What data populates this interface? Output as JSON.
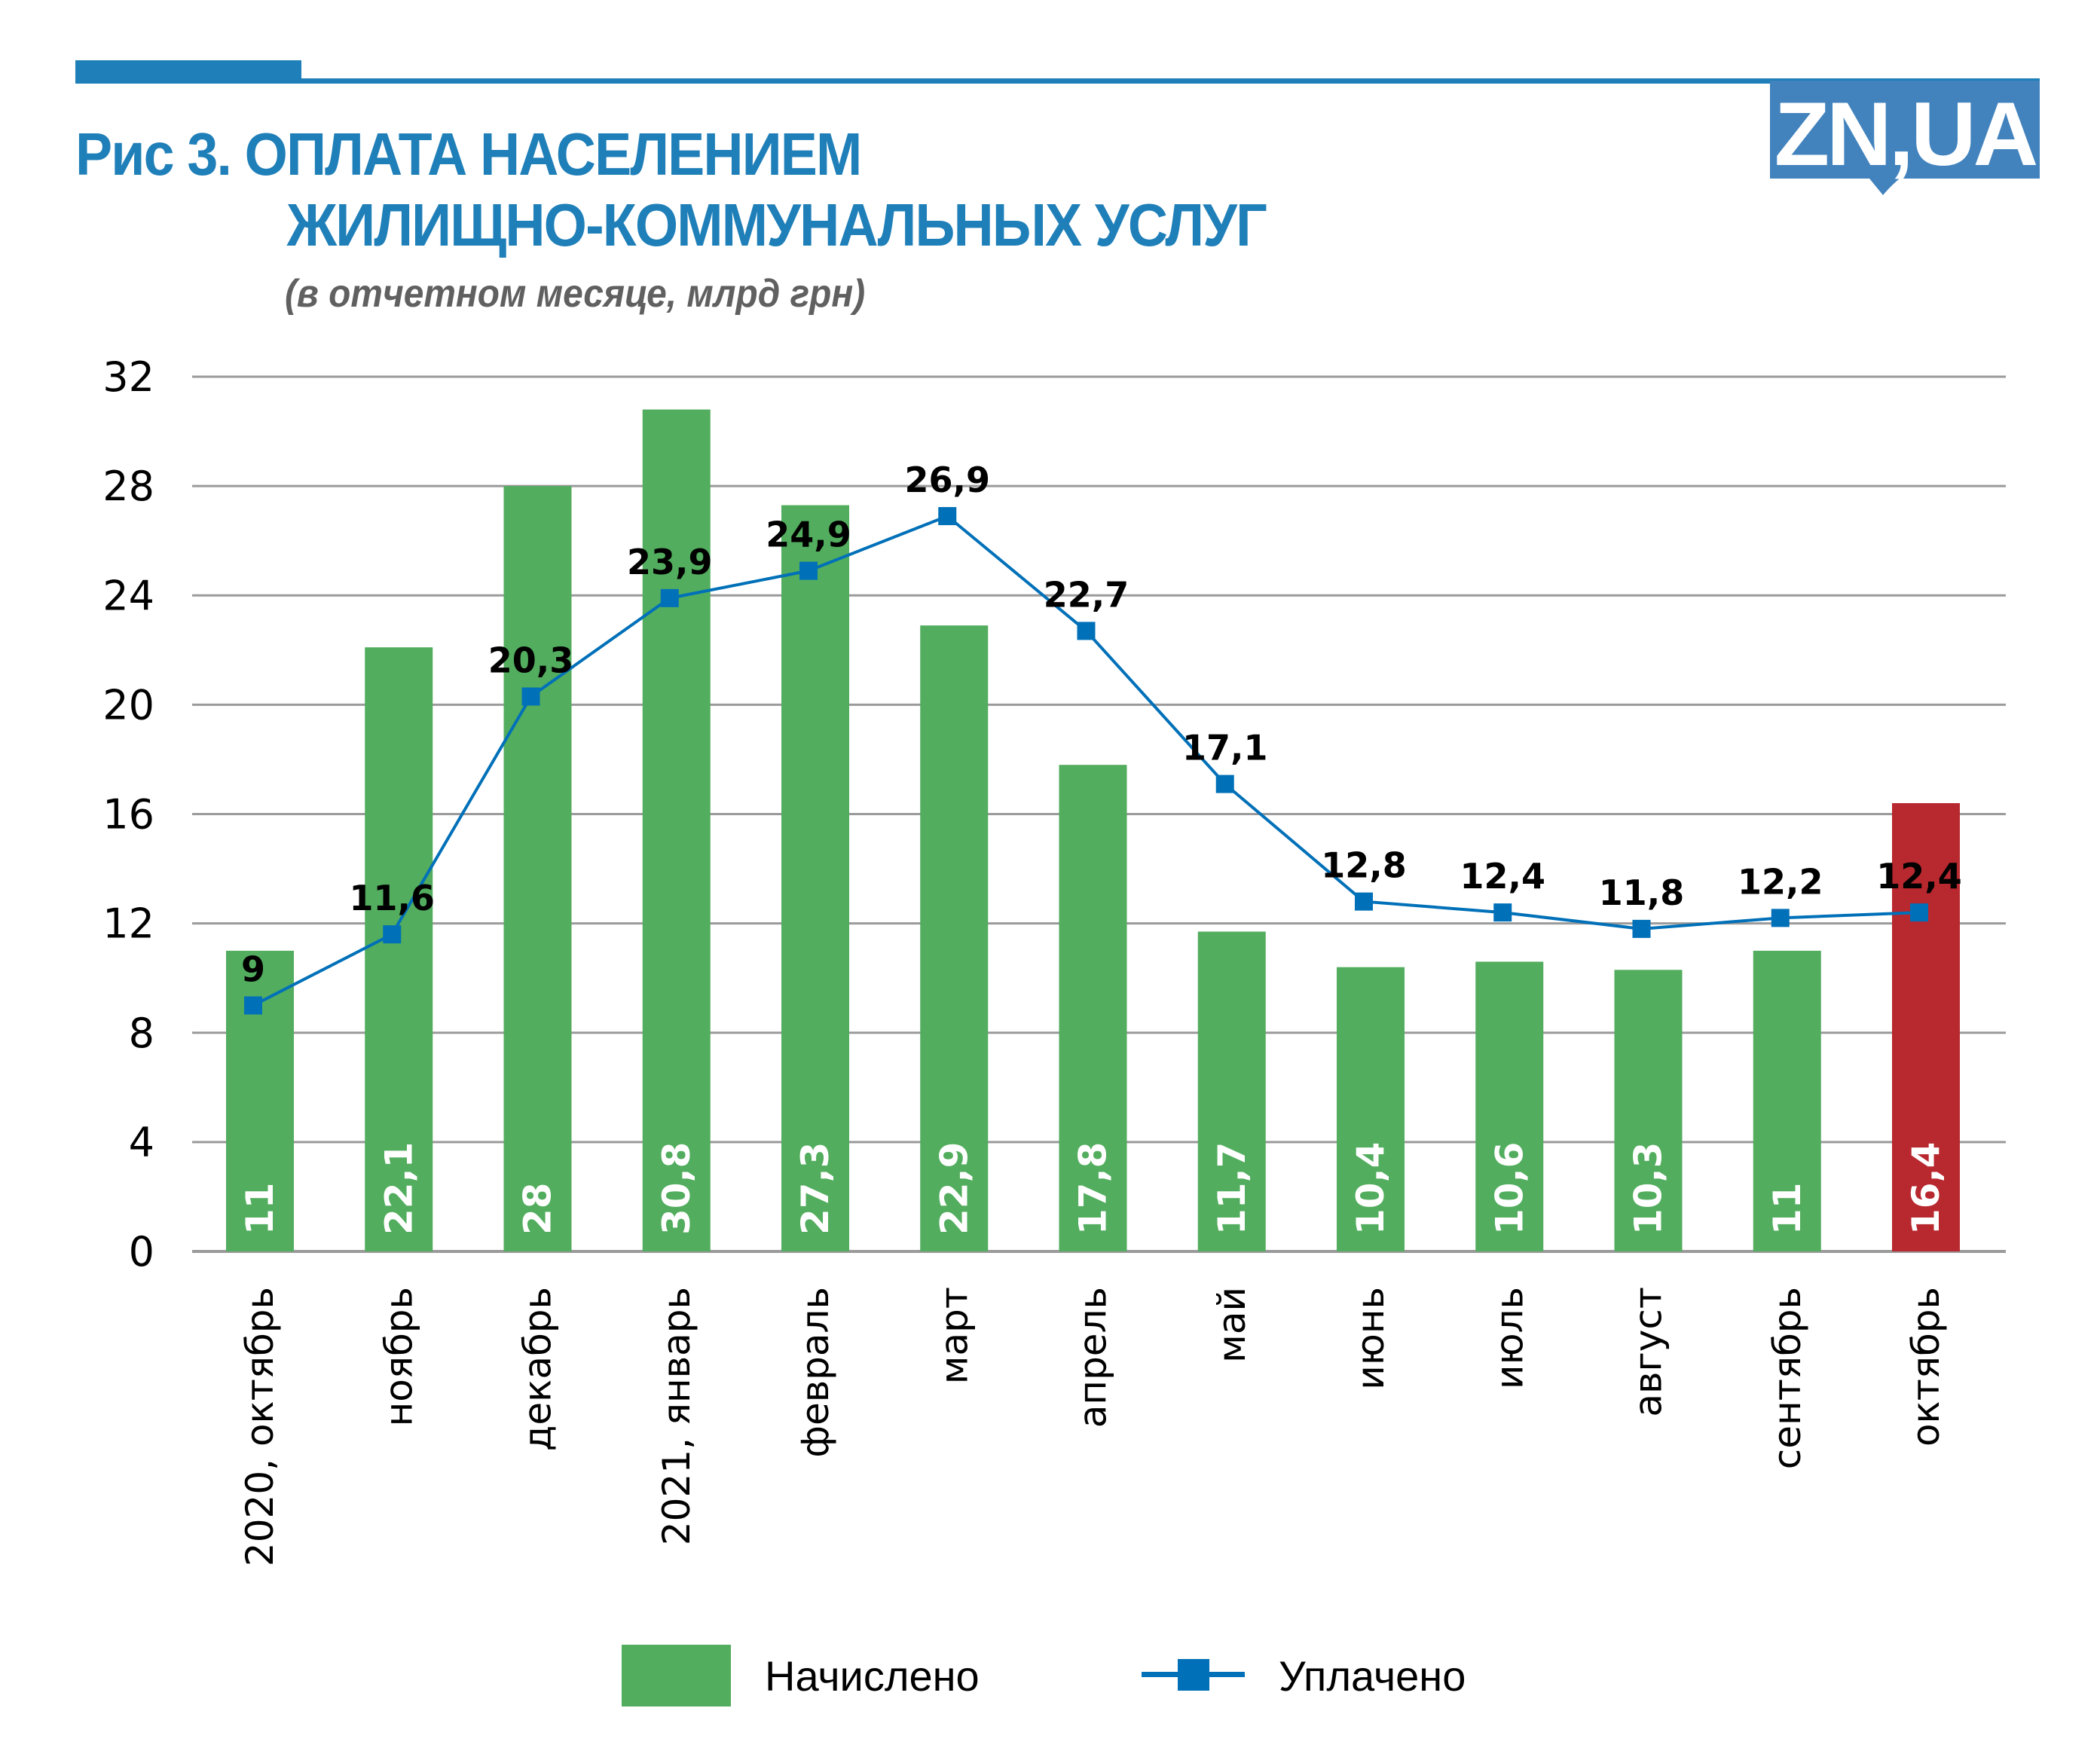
{
  "header": {
    "title_line1": "Рис 3. ОПЛАТА НАСЕЛЕНИЕМ",
    "title_line2": "ЖИЛИЩНО-КОММУНАЛЬНЫХ УСЛУГ",
    "subtitle": "(в отчетном месяце, млрд грн)",
    "logo_text": "ZN,UA"
  },
  "colors": {
    "accent": "#1f7fb8",
    "logo_bg": "#4283be",
    "bar_green": "#52ad5e",
    "bar_highlight": "#b8282f",
    "line_blue": "#0070b8",
    "grid": "#9a9a9a"
  },
  "chart_data": {
    "type": "bar+line",
    "title": "Рис 3. ОПЛАТА НАСЕЛЕНИЕМ ЖИЛИЩНО-КОММУНАЛЬНЫХ УСЛУГ",
    "subtitle": "(в отчетном месяце, млрд грн)",
    "xlabel": "",
    "ylabel": "",
    "ylim": [
      0,
      32
    ],
    "yticks": [
      0,
      4,
      8,
      12,
      16,
      20,
      24,
      28,
      32
    ],
    "ytick_labels": [
      "0",
      "4",
      "8",
      "12",
      "16",
      "20",
      "24",
      "28",
      "32"
    ],
    "grid": true,
    "categories": [
      "2020, октябрь",
      "ноябрь",
      "декабрь",
      "2021, январь",
      "февраль",
      "март",
      "апрель",
      "май",
      "июнь",
      "июль",
      "август",
      "сентябрь",
      "октябрь"
    ],
    "series": [
      {
        "name": "Начислено",
        "type": "bar",
        "values": [
          11,
          22.1,
          28,
          30.8,
          27.3,
          22.9,
          17.8,
          11.7,
          10.4,
          10.6,
          10.3,
          11,
          16.4
        ],
        "labels": [
          "11",
          "22,1",
          "28",
          "30,8",
          "27,3",
          "22,9",
          "17,8",
          "11,7",
          "10,4",
          "10,6",
          "10,3",
          "11",
          "16,4"
        ],
        "highlight_index": 12
      },
      {
        "name": "Уплачено",
        "type": "line",
        "values": [
          9,
          11.6,
          20.3,
          23.9,
          24.9,
          26.9,
          22.7,
          17.1,
          12.8,
          12.4,
          11.8,
          12.2,
          12.4
        ],
        "labels": [
          "9",
          "11,6",
          "20,3",
          "23,9",
          "24,9",
          "26,9",
          "22,7",
          "17,1",
          "12,8",
          "12,4",
          "11,8",
          "12,2",
          "12,4"
        ]
      }
    ],
    "legend": {
      "position": "bottom",
      "entries": [
        "Начислено",
        "Уплачено"
      ]
    }
  }
}
